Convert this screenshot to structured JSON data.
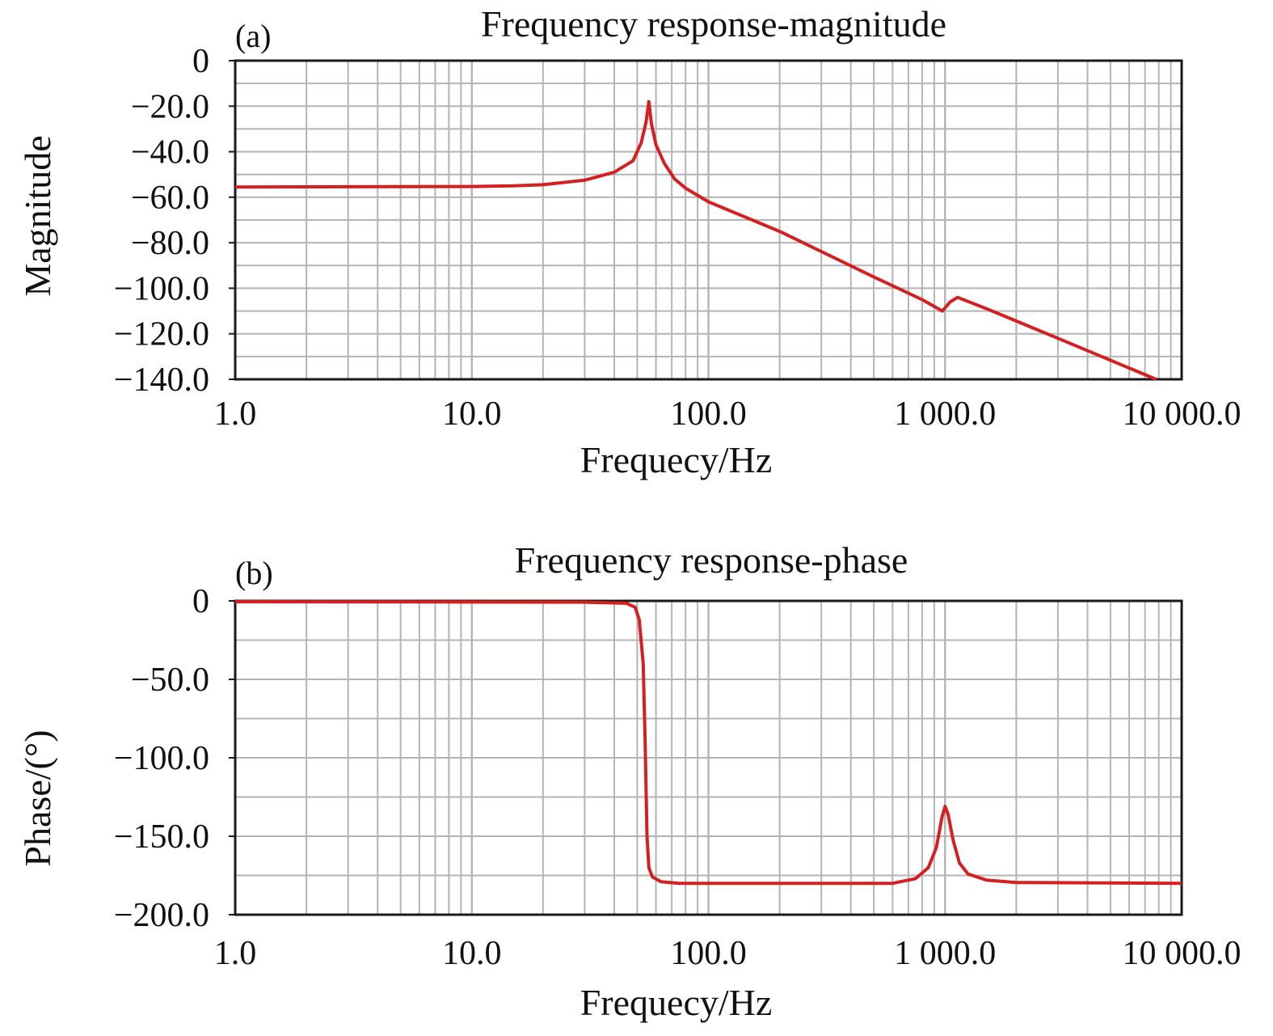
{
  "chart_data": [
    {
      "type": "line",
      "panel_label": "(a)",
      "title": "Frequency response-magnitude",
      "xlabel": "Frequecy/Hz",
      "ylabel": "Magnitude",
      "xscale": "log",
      "xlim": [
        1,
        10000
      ],
      "ylim": [
        -140,
        0
      ],
      "x_ticks": [
        1,
        10,
        100,
        1000,
        10000
      ],
      "x_tick_labels": [
        "1.0",
        "10.0",
        "100.0",
        "1 000.0",
        "10 000.0"
      ],
      "y_ticks": [
        0,
        -20,
        -40,
        -60,
        -80,
        -100,
        -120,
        -140
      ],
      "y_tick_labels": [
        "0",
        "−20.0",
        "−40.0",
        "−60.0",
        "−80.0",
        "−100.0",
        "−120.0",
        "−140.0"
      ],
      "y_grid_step": 10,
      "grid": true,
      "series": [
        {
          "name": "magnitude",
          "color": "#d42020",
          "x": [
            1,
            10,
            15,
            20,
            30,
            40,
            48,
            52,
            54.5,
            56,
            57.5,
            60,
            65,
            72,
            80,
            100,
            200,
            500,
            800,
            975,
            1050,
            1130,
            1500,
            3000,
            7800
          ],
          "y": [
            -55.5,
            -55.3,
            -55,
            -54.5,
            -52.5,
            -49,
            -44,
            -36,
            -27,
            -18,
            -28,
            -37,
            -45,
            -52,
            -56,
            -62,
            -75,
            -95,
            -105,
            -110,
            -106,
            -104,
            -109,
            -122,
            -140
          ]
        }
      ]
    },
    {
      "type": "line",
      "panel_label": "(b)",
      "title": "Frequency response-phase",
      "xlabel": "Frequecy/Hz",
      "ylabel": "Phase/(°)",
      "xscale": "log",
      "xlim": [
        1,
        10000
      ],
      "ylim": [
        -200,
        0
      ],
      "x_ticks": [
        1,
        10,
        100,
        1000,
        10000
      ],
      "x_tick_labels": [
        "1.0",
        "10.0",
        "100.0",
        "1 000.0",
        "10 000.0"
      ],
      "y_ticks": [
        0,
        -50,
        -100,
        -150,
        -200
      ],
      "y_tick_labels": [
        "0",
        "−50.0",
        "−100.0",
        "−150.0",
        "−200.0"
      ],
      "y_grid_step": 25,
      "grid": true,
      "series": [
        {
          "name": "phase",
          "color": "#d42020",
          "x": [
            1,
            30,
            45,
            49,
            51,
            53,
            54,
            55,
            56,
            58,
            63,
            75,
            600,
            750,
            850,
            920,
            970,
            1000,
            1030,
            1080,
            1150,
            1250,
            1500,
            2000,
            10000
          ],
          "y": [
            -0.5,
            -0.8,
            -1.5,
            -4,
            -12,
            -40,
            -90,
            -150,
            -170,
            -176,
            -179,
            -180,
            -180,
            -177,
            -170,
            -157,
            -138,
            -131,
            -136,
            -152,
            -167,
            -174,
            -178,
            -179.5,
            -180
          ]
        }
      ]
    }
  ]
}
